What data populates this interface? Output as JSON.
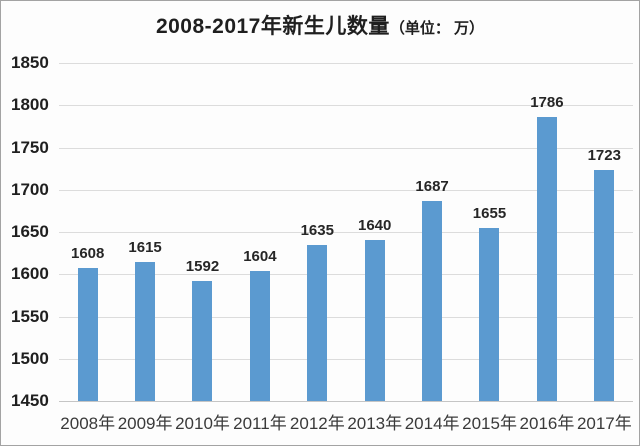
{
  "chart": {
    "title_main": "2008-2017年新生儿数量",
    "title_unit": "（单位：  万）"
  },
  "chart_data": {
    "type": "bar",
    "title": "2008-2017年新生儿数量（单位：万）",
    "categories": [
      "2008年",
      "2009年",
      "2010年",
      "2011年",
      "2012年",
      "2013年",
      "2014年",
      "2015年",
      "2016年",
      "2017年"
    ],
    "values": [
      1608,
      1615,
      1592,
      1604,
      1635,
      1640,
      1687,
      1655,
      1786,
      1723
    ],
    "value_labels_shown": true,
    "xlabel": "",
    "ylabel": "",
    "unit": "万",
    "ylim": [
      1450,
      1850
    ],
    "yticks": [
      1450,
      1500,
      1550,
      1600,
      1650,
      1700,
      1750,
      1800,
      1850
    ],
    "grid": true,
    "legend_position": "none",
    "colors": {
      "bar": "#5b9ad0",
      "gridline": "#dcdcdc",
      "axis_line": "#c5c5c5",
      "text": "#262626",
      "background": "#fdfdfd"
    }
  }
}
